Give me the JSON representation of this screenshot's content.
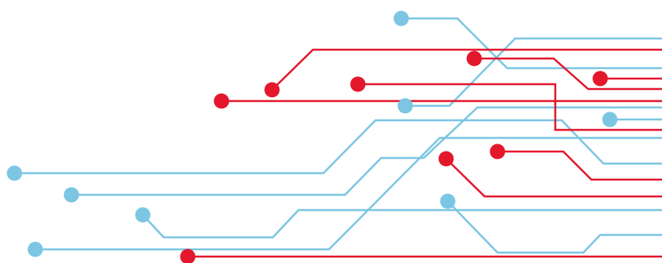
{
  "colors": {
    "background": "#ffffff",
    "blue": "#7cc6e3",
    "red": "#e3182d"
  }
}
